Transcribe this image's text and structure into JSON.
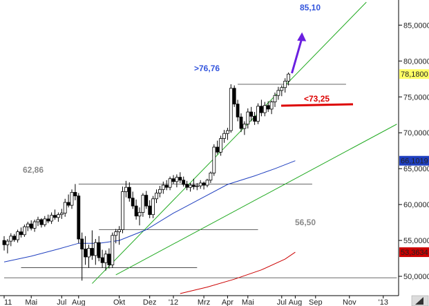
{
  "chart_data": {
    "type": "candlestick",
    "title": "",
    "xlabel": "",
    "ylabel": "",
    "ylim": [
      47.5,
      88.5
    ],
    "y_ticks": [
      "50,0000",
      "55,0000",
      "60,0000",
      "65,0000",
      "70,0000",
      "75,0000",
      "80,0000",
      "85,0000"
    ],
    "y_tick_values": [
      50,
      55,
      60,
      65,
      70,
      75,
      80,
      85
    ],
    "x_ticks": [
      "11",
      "Mai",
      "Jul",
      "Aug",
      "Okt",
      "Dez",
      "'12",
      "Mrz",
      "Apr",
      "Mai",
      "Jul",
      "Aug",
      "Sep",
      "Nov",
      "'13"
    ],
    "x_tick_weeks": [
      0,
      8,
      17,
      22,
      34,
      43,
      50,
      59,
      66,
      72,
      82,
      86,
      92,
      102,
      112
    ],
    "price_labels": [
      {
        "text": "78,1800",
        "value": 78.18,
        "color": "#ffff66",
        "text_color": "#000000"
      },
      {
        "text": "66,1019",
        "value": 66.1019,
        "color": "#1f3fbf",
        "text_color": "#ffffff"
      },
      {
        "text": "53,3634",
        "value": 53.3634,
        "color": "#cc0000",
        "text_color": "#ffffff"
      }
    ],
    "annotations": [
      {
        "text": "85,10",
        "color": "#3355dd"
      },
      {
        "text": ">76,76",
        "color": "#3355dd"
      },
      {
        "text": "<73,25",
        "color": "#dd0000"
      },
      {
        "text": "62,86",
        "color": "#888888"
      },
      {
        "text": "56,50",
        "color": "#888888"
      }
    ],
    "horizontal_levels": [
      {
        "value": 76.76,
        "from_week": 69,
        "to_week": 101
      },
      {
        "value": 62.86,
        "from_week": 22,
        "to_week": 91
      },
      {
        "value": 56.5,
        "from_week": 28,
        "to_week": 75
      },
      {
        "value": 51.2,
        "from_week": 5,
        "to_week": 57
      },
      {
        "value": 49.8,
        "from_week": 0,
        "to_week": 116
      }
    ],
    "trendlines": [
      {
        "color": "#22aa22",
        "from": [
          26,
          49.0
        ],
        "to": [
          107,
          88.2
        ]
      },
      {
        "color": "#22aa22",
        "from": [
          33,
          50.2
        ],
        "to": [
          116,
          71.2
        ]
      }
    ],
    "series": [
      {
        "name": "",
        "color": "#1f3fbf",
        "x": [
          0,
          8,
          16,
          22,
          28,
          34,
          42,
          50,
          58,
          66,
          74,
          80,
          86
        ],
        "values": [
          52.0,
          52.8,
          53.8,
          54.6,
          54.6,
          55.0,
          56.5,
          58.8,
          60.8,
          62.8,
          64.0,
          65.0,
          66.1
        ]
      },
      {
        "name": "",
        "color": "#cc0000",
        "x": [
          52,
          60,
          68,
          76,
          83,
          86
        ],
        "values": [
          47.6,
          48.5,
          49.6,
          50.9,
          52.4,
          53.36
        ]
      }
    ],
    "target_arrow": {
      "from": [
        85,
        78.3
      ],
      "to": [
        88,
        84.0
      ],
      "color": "#6a1fe0"
    },
    "candles": [
      [
        55.0,
        55.6,
        53.6,
        54.4
      ],
      [
        54.4,
        55.2,
        53.2,
        54.9
      ],
      [
        54.9,
        56.0,
        54.2,
        55.6
      ],
      [
        55.6,
        55.9,
        54.8,
        55.1
      ],
      [
        55.1,
        56.5,
        54.7,
        56.2
      ],
      [
        56.2,
        56.8,
        55.4,
        55.8
      ],
      [
        55.8,
        57.2,
        55.5,
        56.9
      ],
      [
        56.9,
        57.6,
        56.3,
        57.3
      ],
      [
        57.3,
        57.8,
        56.4,
        56.7
      ],
      [
        56.7,
        57.9,
        56.2,
        57.6
      ],
      [
        57.6,
        58.3,
        57.0,
        57.9
      ],
      [
        57.9,
        58.1,
        56.8,
        57.2
      ],
      [
        57.2,
        58.4,
        56.9,
        58.0
      ],
      [
        58.0,
        58.6,
        57.4,
        57.7
      ],
      [
        57.7,
        58.9,
        57.3,
        58.5
      ],
      [
        58.5,
        59.3,
        57.9,
        58.2
      ],
      [
        58.2,
        58.9,
        57.6,
        58.6
      ],
      [
        58.6,
        59.4,
        58.0,
        58.8
      ],
      [
        58.8,
        60.8,
        58.3,
        60.3
      ],
      [
        60.3,
        61.4,
        59.6,
        59.9
      ],
      [
        59.9,
        62.1,
        59.4,
        61.7
      ],
      [
        61.7,
        62.86,
        60.6,
        61.2
      ],
      [
        61.2,
        61.6,
        54.6,
        55.2
      ],
      [
        55.2,
        56.1,
        49.4,
        53.8
      ],
      [
        53.8,
        55.6,
        51.6,
        52.7
      ],
      [
        52.7,
        54.4,
        51.2,
        53.9
      ],
      [
        53.9,
        56.4,
        52.3,
        52.9
      ],
      [
        52.9,
        55.2,
        51.6,
        54.7
      ],
      [
        54.7,
        55.6,
        52.1,
        52.6
      ],
      [
        52.6,
        53.7,
        51.2,
        51.9
      ],
      [
        51.9,
        53.6,
        50.8,
        53.1
      ],
      [
        53.1,
        53.9,
        51.1,
        51.6
      ],
      [
        51.6,
        56.1,
        51.2,
        55.7
      ],
      [
        55.7,
        56.6,
        54.6,
        56.2
      ],
      [
        56.2,
        57.0,
        54.4,
        56.5
      ],
      [
        56.5,
        62.5,
        56.0,
        61.8
      ],
      [
        61.8,
        63.3,
        61.0,
        62.4
      ],
      [
        62.4,
        63.1,
        60.4,
        60.9
      ],
      [
        60.9,
        61.8,
        59.4,
        59.8
      ],
      [
        59.8,
        60.7,
        57.9,
        58.4
      ],
      [
        58.4,
        59.6,
        57.1,
        58.9
      ],
      [
        58.9,
        61.6,
        58.3,
        61.3
      ],
      [
        61.3,
        61.9,
        59.4,
        59.8
      ],
      [
        59.8,
        60.6,
        58.1,
        58.6
      ],
      [
        58.6,
        61.2,
        58.1,
        60.8
      ],
      [
        60.8,
        62.1,
        60.2,
        61.6
      ],
      [
        61.6,
        62.6,
        61.0,
        62.1
      ],
      [
        62.1,
        63.2,
        61.5,
        62.7
      ],
      [
        62.7,
        63.4,
        62.0,
        62.4
      ],
      [
        62.4,
        63.9,
        62.0,
        63.6
      ],
      [
        63.6,
        64.1,
        62.9,
        63.2
      ],
      [
        63.2,
        64.2,
        62.4,
        63.8
      ],
      [
        63.8,
        64.5,
        63.0,
        63.4
      ],
      [
        63.4,
        63.9,
        62.5,
        62.8
      ],
      [
        62.8,
        63.3,
        62.0,
        62.4
      ],
      [
        62.4,
        63.0,
        61.8,
        62.7
      ],
      [
        62.7,
        63.6,
        62.1,
        62.5
      ],
      [
        62.5,
        63.0,
        62.0,
        62.6
      ],
      [
        62.6,
        63.4,
        62.2,
        63.0
      ],
      [
        63.0,
        63.2,
        62.1,
        62.7
      ],
      [
        62.7,
        63.6,
        62.4,
        63.4
      ],
      [
        63.4,
        64.6,
        63.0,
        64.4
      ],
      [
        64.4,
        68.4,
        64.0,
        68.0
      ],
      [
        68.0,
        68.9,
        67.0,
        67.3
      ],
      [
        67.3,
        69.6,
        66.8,
        69.2
      ],
      [
        69.2,
        70.4,
        68.6,
        69.9
      ],
      [
        69.9,
        70.7,
        69.0,
        70.3
      ],
      [
        70.3,
        76.76,
        70.0,
        76.2
      ],
      [
        76.2,
        76.6,
        73.6,
        74.0
      ],
      [
        74.0,
        74.6,
        71.6,
        72.2
      ],
      [
        72.2,
        72.7,
        70.1,
        70.6
      ],
      [
        70.6,
        71.6,
        69.7,
        71.2
      ],
      [
        71.2,
        73.4,
        70.6,
        72.9
      ],
      [
        72.9,
        73.6,
        71.6,
        72.3
      ],
      [
        72.3,
        72.9,
        71.1,
        71.6
      ],
      [
        71.6,
        74.1,
        71.2,
        73.7
      ],
      [
        73.7,
        74.6,
        72.3,
        72.8
      ],
      [
        72.8,
        74.3,
        72.3,
        73.8
      ],
      [
        73.8,
        74.4,
        72.9,
        73.3
      ],
      [
        73.3,
        74.5,
        72.6,
        74.3
      ],
      [
        74.3,
        75.6,
        73.6,
        75.2
      ],
      [
        75.2,
        76.4,
        74.6,
        75.9
      ],
      [
        75.9,
        76.6,
        75.1,
        76.3
      ],
      [
        76.3,
        77.6,
        75.6,
        77.2
      ],
      [
        77.2,
        78.4,
        76.6,
        78.18
      ]
    ]
  }
}
